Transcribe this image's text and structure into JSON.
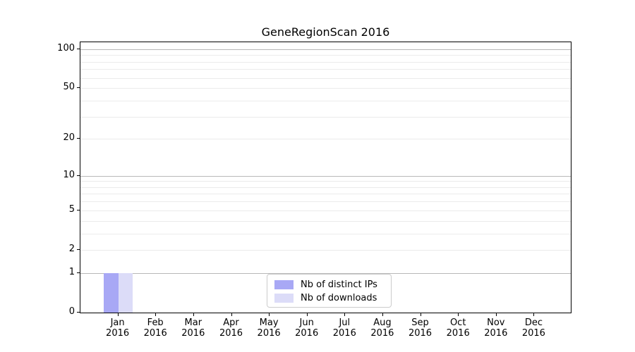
{
  "chart_data": {
    "type": "bar",
    "title": "GeneRegionScan 2016",
    "months": [
      "Jan",
      "Feb",
      "Mar",
      "Apr",
      "May",
      "Jun",
      "Jul",
      "Aug",
      "Sep",
      "Oct",
      "Nov",
      "Dec"
    ],
    "year": "2016",
    "series": [
      {
        "name": "Nb of distinct IPs",
        "color": "#a8a8f5",
        "values": [
          1,
          0,
          0,
          0,
          0,
          0,
          0,
          0,
          0,
          0,
          0,
          0
        ]
      },
      {
        "name": "Nb of downloads",
        "color": "#dcdcf8",
        "values": [
          1,
          0,
          0,
          0,
          0,
          0,
          0,
          0,
          0,
          0,
          0,
          0
        ]
      }
    ],
    "yscale": "log1p",
    "ytick_values": [
      0,
      1,
      2,
      5,
      10,
      20,
      50,
      100
    ],
    "ylim": [
      0,
      113
    ],
    "grid": "both",
    "legend_position": "lower center"
  },
  "colors": {
    "grid_minor": "#ebebeb",
    "grid_major": "#b8b8b8",
    "axis": "#000000",
    "legend_border": "#cccccc",
    "background": "#ffffff"
  }
}
